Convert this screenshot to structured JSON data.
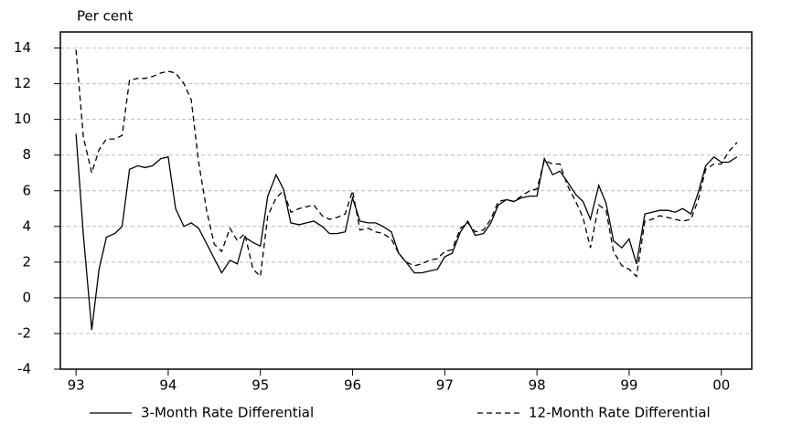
{
  "chart_data": {
    "type": "line",
    "y_label": "Per cent",
    "x": [
      1993,
      1993.08,
      1993.17,
      1993.25,
      1993.33,
      1993.42,
      1993.5,
      1993.58,
      1993.67,
      1993.75,
      1993.83,
      1993.92,
      1994,
      1994.08,
      1994.17,
      1994.25,
      1994.33,
      1994.42,
      1994.5,
      1994.58,
      1994.67,
      1994.75,
      1994.83,
      1994.92,
      1995,
      1995.08,
      1995.17,
      1995.25,
      1995.33,
      1995.42,
      1995.5,
      1995.58,
      1995.67,
      1995.75,
      1995.83,
      1995.92,
      1996,
      1996.08,
      1996.17,
      1996.25,
      1996.33,
      1996.42,
      1996.5,
      1996.58,
      1996.67,
      1996.75,
      1996.83,
      1996.92,
      1997,
      1997.08,
      1997.17,
      1997.25,
      1997.33,
      1997.42,
      1997.5,
      1997.58,
      1997.67,
      1997.75,
      1997.83,
      1997.92,
      1998,
      1998.08,
      1998.17,
      1998.25,
      1998.33,
      1998.42,
      1998.5,
      1998.58,
      1998.67,
      1998.75,
      1998.83,
      1998.92,
      1999,
      1999.08,
      1999.17,
      1999.25,
      1999.33,
      1999.42,
      1999.5,
      1999.58,
      1999.67,
      1999.75,
      1999.83,
      1999.92,
      2000,
      2000.08,
      2000.17
    ],
    "series": [
      {
        "name": "3-Month Rate Differential",
        "color": "#000000",
        "style": "solid",
        "values": [
          9.2,
          3.5,
          -1.8,
          1.6,
          3.4,
          3.6,
          4.0,
          7.2,
          7.4,
          7.3,
          7.4,
          7.8,
          7.9,
          5.0,
          4.0,
          4.2,
          3.9,
          3.0,
          2.2,
          1.4,
          2.1,
          1.9,
          3.4,
          3.1,
          2.9,
          5.7,
          6.9,
          6.1,
          4.2,
          4.1,
          4.2,
          4.3,
          4.0,
          3.6,
          3.6,
          3.7,
          5.6,
          4.3,
          4.2,
          4.2,
          4.0,
          3.7,
          2.5,
          2.0,
          1.4,
          1.4,
          1.5,
          1.6,
          2.3,
          2.5,
          3.7,
          4.3,
          3.5,
          3.6,
          4.2,
          5.2,
          5.5,
          5.4,
          5.6,
          5.7,
          5.7,
          7.8,
          6.9,
          7.1,
          6.5,
          5.8,
          5.4,
          4.4,
          6.3,
          5.3,
          3.2,
          2.8,
          3.3,
          1.9,
          4.7,
          4.8,
          4.9,
          4.9,
          4.8,
          5.0,
          4.7,
          5.9,
          7.4,
          7.9,
          7.6,
          7.6,
          7.9
        ]
      },
      {
        "name": "12-Month Rate Differential",
        "color": "#000000",
        "style": "dashed",
        "values": [
          13.9,
          9.0,
          7.0,
          8.3,
          8.9,
          8.9,
          9.1,
          12.2,
          12.3,
          12.3,
          12.4,
          12.6,
          12.7,
          12.6,
          12.0,
          11.1,
          7.6,
          4.8,
          3.0,
          2.6,
          3.9,
          3.2,
          3.6,
          1.6,
          1.2,
          4.6,
          5.6,
          6.0,
          4.8,
          5.0,
          5.1,
          5.2,
          4.6,
          4.4,
          4.5,
          4.7,
          6.0,
          3.8,
          3.9,
          3.7,
          3.6,
          3.3,
          2.5,
          2.0,
          1.8,
          1.9,
          2.1,
          2.2,
          2.6,
          2.7,
          3.9,
          4.2,
          3.7,
          3.8,
          4.4,
          5.4,
          5.5,
          5.4,
          5.7,
          6.0,
          6.1,
          7.7,
          7.5,
          7.5,
          6.3,
          5.4,
          4.5,
          2.8,
          5.2,
          4.9,
          2.6,
          1.8,
          1.6,
          1.2,
          4.3,
          4.4,
          4.6,
          4.5,
          4.4,
          4.3,
          4.4,
          5.5,
          7.2,
          7.5,
          7.5,
          8.2,
          8.7
        ]
      }
    ],
    "xlim": [
      1992.83,
      2000.33
    ],
    "xticks": [
      {
        "value": 1993,
        "label": "93"
      },
      {
        "value": 1994,
        "label": "94"
      },
      {
        "value": 1995,
        "label": "95"
      },
      {
        "value": 1996,
        "label": "96"
      },
      {
        "value": 1997,
        "label": "97"
      },
      {
        "value": 1998,
        "label": "98"
      },
      {
        "value": 1999,
        "label": "99"
      },
      {
        "value": 2000,
        "label": "00"
      }
    ],
    "ylim": [
      -4,
      14.9
    ],
    "yticks": [
      -4,
      -2,
      0,
      2,
      4,
      6,
      8,
      10,
      12,
      14
    ],
    "grid": true,
    "legend": "bottom"
  }
}
